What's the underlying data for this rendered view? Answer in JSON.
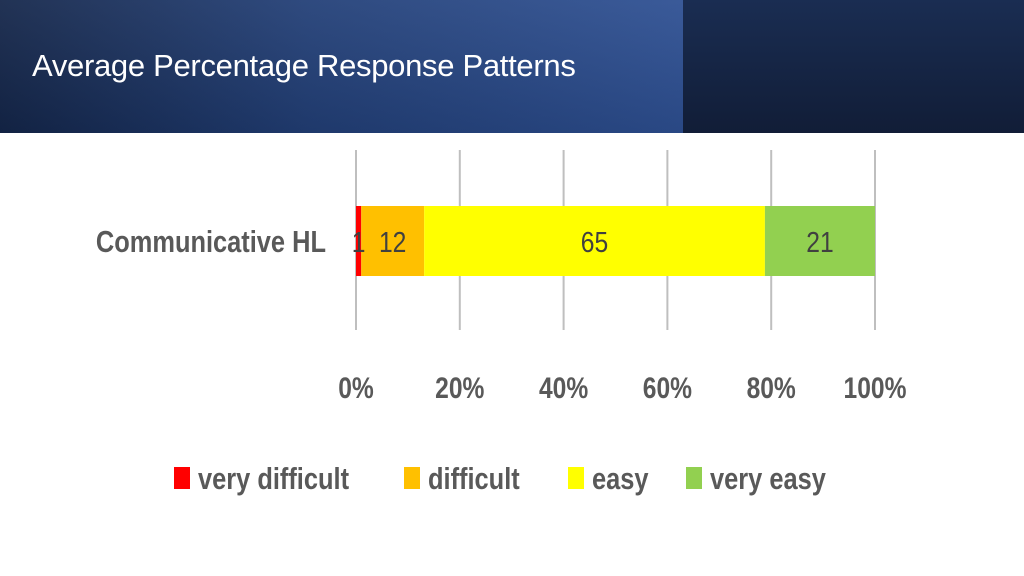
{
  "slide": {
    "title": "Average Percentage Response Patterns"
  },
  "chart_data": {
    "type": "bar",
    "orientation": "horizontal",
    "stacked": true,
    "percent_stacked": true,
    "categories": [
      "Communicative HL"
    ],
    "series": [
      {
        "name": "very difficult",
        "values": [
          1
        ],
        "color": "#ff0000"
      },
      {
        "name": "difficult",
        "values": [
          12
        ],
        "color": "#ffc000"
      },
      {
        "name": "easy",
        "values": [
          65
        ],
        "color": "#ffff00"
      },
      {
        "name": "very easy",
        "values": [
          21
        ],
        "color": "#92d050"
      }
    ],
    "x_ticks": [
      "0%",
      "20%",
      "40%",
      "60%",
      "80%",
      "100%"
    ],
    "xlim": [
      0,
      100
    ],
    "grid": true,
    "legend_position": "bottom"
  }
}
